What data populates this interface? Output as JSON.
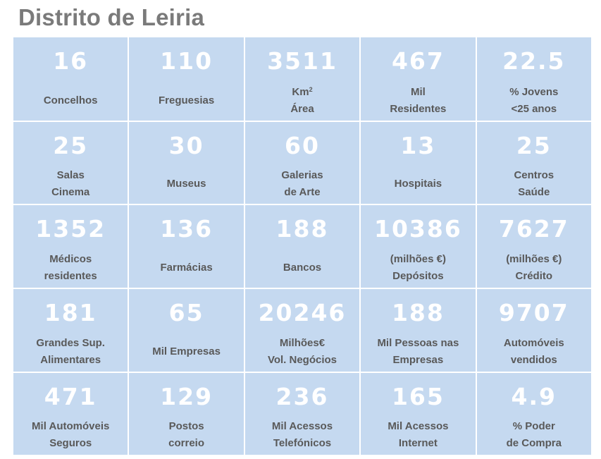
{
  "title": "Distrito de Leiria",
  "cells": [
    {
      "value": "16",
      "line1": "Concelhos",
      "line2": ""
    },
    {
      "value": "110",
      "line1": "Freguesias",
      "line2": ""
    },
    {
      "value": "3511",
      "line1": "Km",
      "line1_sup": "2",
      "line2": "Área"
    },
    {
      "value": "467",
      "line1": "Mil",
      "line2": "Residentes"
    },
    {
      "value": "22.5",
      "line1": "% Jovens",
      "line2": "<25 anos"
    },
    {
      "value": "25",
      "line1": "Salas",
      "line2": "Cinema"
    },
    {
      "value": "30",
      "line1": "Museus",
      "line2": ""
    },
    {
      "value": "60",
      "line1": "Galerias",
      "line2": "de Arte"
    },
    {
      "value": "13",
      "line1": "Hospitais",
      "line2": ""
    },
    {
      "value": "25",
      "line1": "Centros",
      "line2": "Saúde"
    },
    {
      "value": "1352",
      "line1": "Médicos",
      "line2": "residentes"
    },
    {
      "value": "136",
      "line1": "Farmácias",
      "line2": ""
    },
    {
      "value": "188",
      "line1": "Bancos",
      "line2": ""
    },
    {
      "value": "10386",
      "line1": "(milhões €)",
      "line2": "Depósitos"
    },
    {
      "value": "7627",
      "line1": "(milhões €)",
      "line2": "Crédito"
    },
    {
      "value": "181",
      "line1": "Grandes Sup.",
      "line2": "Alimentares"
    },
    {
      "value": "65",
      "line1": "Mil Empresas",
      "line2": ""
    },
    {
      "value": "20246",
      "line1": "Milhões€",
      "line2": "Vol. Negócios"
    },
    {
      "value": "188",
      "line1": "Mil Pessoas nas",
      "line2": "Empresas"
    },
    {
      "value": "9707",
      "line1": "Automóveis",
      "line2": "vendidos"
    },
    {
      "value": "471",
      "line1": "Mil Automóveis",
      "line2": "Seguros"
    },
    {
      "value": "129",
      "line1": "Postos",
      "line2": "correio"
    },
    {
      "value": "236",
      "line1": "Mil Acessos",
      "line2": "Telefónicos"
    },
    {
      "value": "165",
      "line1": "Mil Acessos",
      "line2": "Internet"
    },
    {
      "value": "4.9",
      "line1": "% Poder",
      "line2": "de Compra"
    }
  ]
}
